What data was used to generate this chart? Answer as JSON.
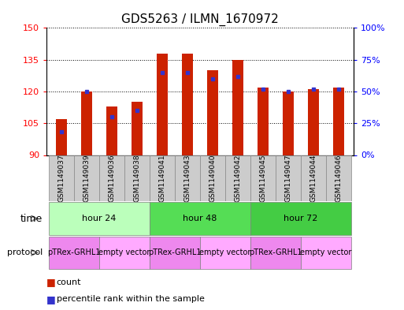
{
  "title": "GDS5263 / ILMN_1670972",
  "samples": [
    "GSM1149037",
    "GSM1149039",
    "GSM1149036",
    "GSM1149038",
    "GSM1149041",
    "GSM1149043",
    "GSM1149040",
    "GSM1149042",
    "GSM1149045",
    "GSM1149047",
    "GSM1149044",
    "GSM1149046"
  ],
  "count_values": [
    107,
    120,
    113,
    115,
    138,
    138,
    130,
    135,
    122,
    120,
    121,
    122
  ],
  "percentile_values": [
    18,
    50,
    30,
    35,
    65,
    65,
    60,
    62,
    52,
    50,
    52,
    52
  ],
  "y_min": 90,
  "y_max": 150,
  "y_ticks": [
    90,
    105,
    120,
    135,
    150
  ],
  "y2_ticks": [
    0,
    25,
    50,
    75,
    100
  ],
  "bar_color": "#cc2200",
  "percentile_color": "#3333cc",
  "time_groups": [
    {
      "label": "hour 24",
      "start": 0,
      "end": 3,
      "color": "#bbffbb"
    },
    {
      "label": "hour 48",
      "start": 4,
      "end": 7,
      "color": "#55dd55"
    },
    {
      "label": "hour 72",
      "start": 8,
      "end": 11,
      "color": "#44cc44"
    }
  ],
  "protocol_groups": [
    {
      "label": "pTRex-GRHL1",
      "start": 0,
      "end": 1,
      "color": "#ee88ee"
    },
    {
      "label": "empty vector",
      "start": 2,
      "end": 3,
      "color": "#ffaaff"
    },
    {
      "label": "pTRex-GRHL1",
      "start": 4,
      "end": 5,
      "color": "#ee88ee"
    },
    {
      "label": "empty vector",
      "start": 6,
      "end": 7,
      "color": "#ffaaff"
    },
    {
      "label": "pTRex-GRHL1",
      "start": 8,
      "end": 9,
      "color": "#ee88ee"
    },
    {
      "label": "empty vector",
      "start": 10,
      "end": 11,
      "color": "#ffaaff"
    }
  ],
  "sample_bg_color": "#cccccc",
  "sample_border_color": "#888888",
  "bar_width": 0.45,
  "tick_label_fontsize": 6.5,
  "title_fontsize": 11,
  "legend_label_fontsize": 8,
  "row_label_fontsize": 9,
  "group_label_fontsize": 8
}
